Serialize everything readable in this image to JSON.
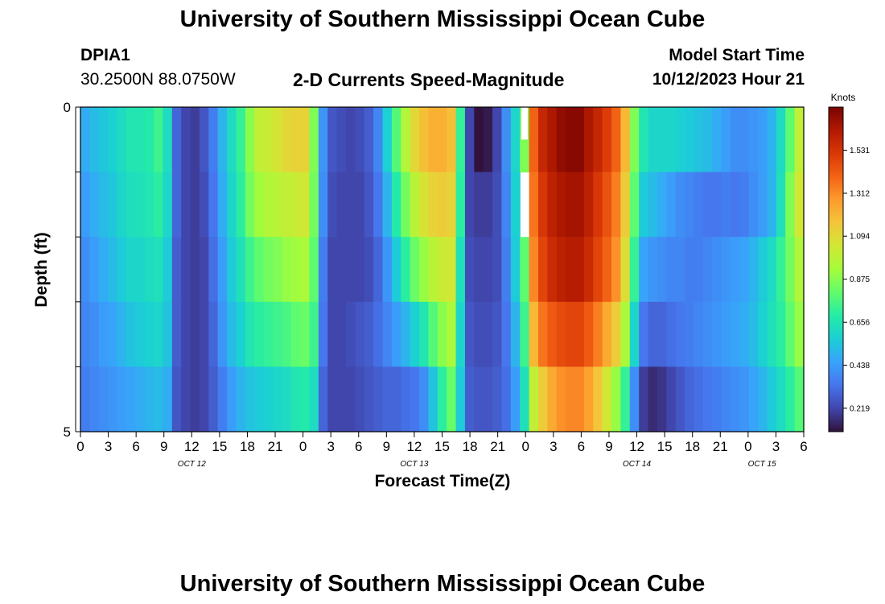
{
  "header": {
    "title": "University of Southern Mississippi Ocean Cube",
    "station_id": "DPIA1",
    "coordinates": "30.2500N  88.0750W",
    "subtitle": "2-D Currents Speed-Magnitude",
    "model_start_label": "Model Start Time",
    "model_start_value": "10/12/2023 Hour 21"
  },
  "footer": {
    "title": "University of Southern Mississippi Ocean Cube"
  },
  "chart_data": {
    "type": "heatmap",
    "title": "2-D Currents Speed-Magnitude",
    "xlabel": "Forecast Time(Z)",
    "ylabel": "Depth (ft)",
    "x_tick_labels": [
      "0",
      "3",
      "6",
      "9",
      "12",
      "15",
      "18",
      "21",
      "0",
      "3",
      "6",
      "9",
      "12",
      "15",
      "18",
      "21",
      "0",
      "3",
      "6",
      "9",
      "12",
      "15",
      "18",
      "21",
      "0",
      "3",
      "6"
    ],
    "date_labels": [
      {
        "label": "OCT 12",
        "tick_index": 4
      },
      {
        "label": "OCT 13",
        "tick_index": 12
      },
      {
        "label": "OCT 14",
        "tick_index": 20
      },
      {
        "label": "OCT 15",
        "tick_index": 24.5
      }
    ],
    "y_tick_labels": [
      "0",
      "5"
    ],
    "ylim": [
      0,
      5
    ],
    "hours_start": 0,
    "hours_end": 78,
    "colorbar": {
      "unit": "Knots",
      "ticks": [
        "1.531",
        "1.312",
        "1.094",
        "0.875",
        "0.656",
        "0.438",
        "0.219"
      ],
      "range": [
        0.1,
        1.75
      ],
      "stops": [
        "#30123b",
        "#4145ab",
        "#4675ed",
        "#39a2fc",
        "#1bcfd4",
        "#24eca6",
        "#61fc6c",
        "#a4fc3b",
        "#d1e834",
        "#f3c63a",
        "#fe9b2d",
        "#f36315",
        "#d93806",
        "#b11901",
        "#7a0402"
      ]
    },
    "depth_rows": 5,
    "series": [
      {
        "name": "depth_row_1",
        "values": [
          0.48,
          0.52,
          0.55,
          0.58,
          0.62,
          0.66,
          0.66,
          0.68,
          0.74,
          0.62,
          0.3,
          0.22,
          0.2,
          0.26,
          0.36,
          0.5,
          0.62,
          0.72,
          0.88,
          1.0,
          1.02,
          1.06,
          1.1,
          1.12,
          1.12,
          0.86,
          0.42,
          0.26,
          0.24,
          0.22,
          0.24,
          0.28,
          0.38,
          0.58,
          0.78,
          0.96,
          1.1,
          1.18,
          1.22,
          1.22,
          1.18,
          0.72,
          0.22,
          0.1,
          0.12,
          0.22,
          0.4,
          0.6,
          0.86,
          1.4,
          1.58,
          1.64,
          1.7,
          1.72,
          1.72,
          1.64,
          1.58,
          1.5,
          1.4,
          1.2,
          0.86,
          0.66,
          0.6,
          0.6,
          0.6,
          0.58,
          0.56,
          0.54,
          0.52,
          0.48,
          0.44,
          0.4,
          0.4,
          0.42,
          0.44,
          0.5,
          0.62,
          0.8,
          1.0
        ]
      },
      {
        "name": "depth_row_2",
        "values": [
          0.44,
          0.48,
          0.52,
          0.55,
          0.6,
          0.63,
          0.64,
          0.66,
          0.7,
          0.6,
          0.3,
          0.22,
          0.2,
          0.24,
          0.34,
          0.48,
          0.6,
          0.7,
          0.84,
          0.92,
          0.96,
          0.98,
          1.0,
          1.02,
          1.04,
          0.84,
          0.4,
          0.24,
          0.22,
          0.22,
          0.22,
          0.26,
          0.34,
          0.5,
          0.68,
          0.84,
          0.98,
          1.06,
          1.12,
          1.14,
          1.12,
          0.7,
          0.22,
          0.2,
          0.2,
          0.24,
          0.38,
          0.58,
          0.84,
          1.36,
          1.52,
          1.6,
          1.64,
          1.66,
          1.66,
          1.6,
          1.52,
          1.44,
          1.34,
          1.14,
          0.8,
          0.56,
          0.52,
          0.48,
          0.44,
          0.4,
          0.38,
          0.36,
          0.34,
          0.34,
          0.36,
          0.34,
          0.36,
          0.4,
          0.44,
          0.5,
          0.64,
          0.86,
          1.04
        ]
      },
      {
        "name": "depth_row_3",
        "values": [
          0.4,
          0.44,
          0.48,
          0.52,
          0.56,
          0.6,
          0.6,
          0.62,
          0.64,
          0.56,
          0.28,
          0.22,
          0.2,
          0.22,
          0.32,
          0.44,
          0.56,
          0.64,
          0.74,
          0.8,
          0.84,
          0.86,
          0.9,
          0.92,
          0.94,
          0.8,
          0.36,
          0.22,
          0.22,
          0.22,
          0.22,
          0.24,
          0.3,
          0.42,
          0.56,
          0.7,
          0.82,
          0.9,
          0.98,
          1.02,
          1.04,
          0.64,
          0.24,
          0.22,
          0.22,
          0.24,
          0.36,
          0.56,
          0.8,
          1.32,
          1.48,
          1.56,
          1.6,
          1.62,
          1.62,
          1.56,
          1.48,
          1.4,
          1.3,
          1.08,
          0.72,
          0.46,
          0.42,
          0.4,
          0.38,
          0.38,
          0.36,
          0.36,
          0.38,
          0.4,
          0.42,
          0.44,
          0.46,
          0.5,
          0.56,
          0.62,
          0.72,
          0.84,
          0.96
        ]
      },
      {
        "name": "depth_row_4",
        "values": [
          0.38,
          0.4,
          0.44,
          0.46,
          0.5,
          0.54,
          0.56,
          0.58,
          0.6,
          0.54,
          0.28,
          0.22,
          0.2,
          0.22,
          0.3,
          0.42,
          0.52,
          0.58,
          0.66,
          0.7,
          0.72,
          0.74,
          0.76,
          0.8,
          0.82,
          0.74,
          0.34,
          0.22,
          0.22,
          0.24,
          0.26,
          0.28,
          0.32,
          0.38,
          0.44,
          0.5,
          0.58,
          0.66,
          0.78,
          0.88,
          0.94,
          0.6,
          0.26,
          0.24,
          0.24,
          0.26,
          0.34,
          0.5,
          0.74,
          1.2,
          1.36,
          1.42,
          1.46,
          1.48,
          1.48,
          1.42,
          1.34,
          1.24,
          1.14,
          0.94,
          0.6,
          0.34,
          0.3,
          0.3,
          0.32,
          0.34,
          0.36,
          0.38,
          0.4,
          0.42,
          0.44,
          0.46,
          0.48,
          0.52,
          0.58,
          0.64,
          0.7,
          0.8,
          0.9
        ]
      },
      {
        "name": "depth_row_5",
        "values": [
          0.36,
          0.38,
          0.4,
          0.42,
          0.44,
          0.46,
          0.48,
          0.5,
          0.52,
          0.48,
          0.26,
          0.22,
          0.2,
          0.22,
          0.28,
          0.36,
          0.44,
          0.5,
          0.54,
          0.56,
          0.58,
          0.6,
          0.62,
          0.66,
          0.68,
          0.62,
          0.3,
          0.22,
          0.22,
          0.22,
          0.24,
          0.26,
          0.28,
          0.3,
          0.3,
          0.32,
          0.34,
          0.4,
          0.54,
          0.7,
          0.82,
          0.56,
          0.28,
          0.26,
          0.26,
          0.28,
          0.32,
          0.44,
          0.64,
          1.0,
          1.14,
          1.24,
          1.3,
          1.32,
          1.32,
          1.26,
          1.16,
          1.04,
          0.9,
          0.72,
          0.4,
          0.2,
          0.16,
          0.18,
          0.22,
          0.26,
          0.3,
          0.32,
          0.34,
          0.36,
          0.38,
          0.4,
          0.42,
          0.46,
          0.5,
          0.56,
          0.62,
          0.7,
          0.78
        ]
      }
    ],
    "missing_cells": [
      {
        "hour": 48,
        "row": 1
      }
    ]
  }
}
